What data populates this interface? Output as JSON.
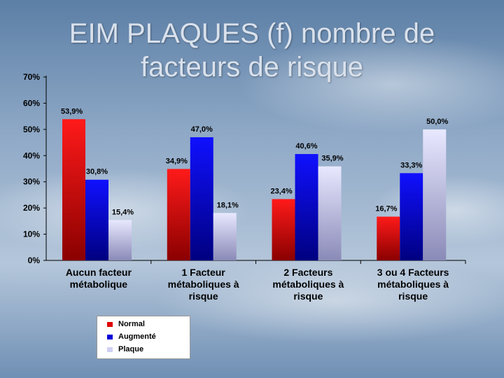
{
  "chart_data": {
    "type": "bar",
    "title_line1": "EIM PLAQUES  (f) nombre de",
    "title_line2": "facteurs de risque",
    "categories": [
      [
        "Aucun facteur",
        "métabolique"
      ],
      [
        "1 Facteur",
        "métaboliques à",
        "risque"
      ],
      [
        "2 Facteurs",
        "métaboliques à",
        "risque"
      ],
      [
        "3 ou 4 Facteurs",
        "métaboliques à",
        "risque"
      ]
    ],
    "series": [
      {
        "name": "Normal",
        "values": [
          53.9,
          34.9,
          23.4,
          16.7
        ],
        "labels": [
          "53,9%",
          "34,9%",
          "23,4%",
          "16,7%"
        ],
        "color": "#e00000"
      },
      {
        "name": "Augmenté",
        "values": [
          30.8,
          47.0,
          40.6,
          33.3
        ],
        "labels": [
          "30,8%",
          "47,0%",
          "40,6%",
          "33,3%"
        ],
        "color": "#0000d8"
      },
      {
        "name": "Plaque",
        "values": [
          15.4,
          18.1,
          35.9,
          50.0
        ],
        "labels": [
          "15,4%",
          "18,1%",
          "35,9%",
          "50,0%"
        ],
        "color": "#d0d0f4"
      }
    ],
    "yticks": [
      "0%",
      "10%",
      "20%",
      "30%",
      "40%",
      "50%",
      "60%",
      "70%"
    ],
    "ylim": [
      0,
      70
    ],
    "grid": false,
    "legend_position": "bottom-left"
  }
}
